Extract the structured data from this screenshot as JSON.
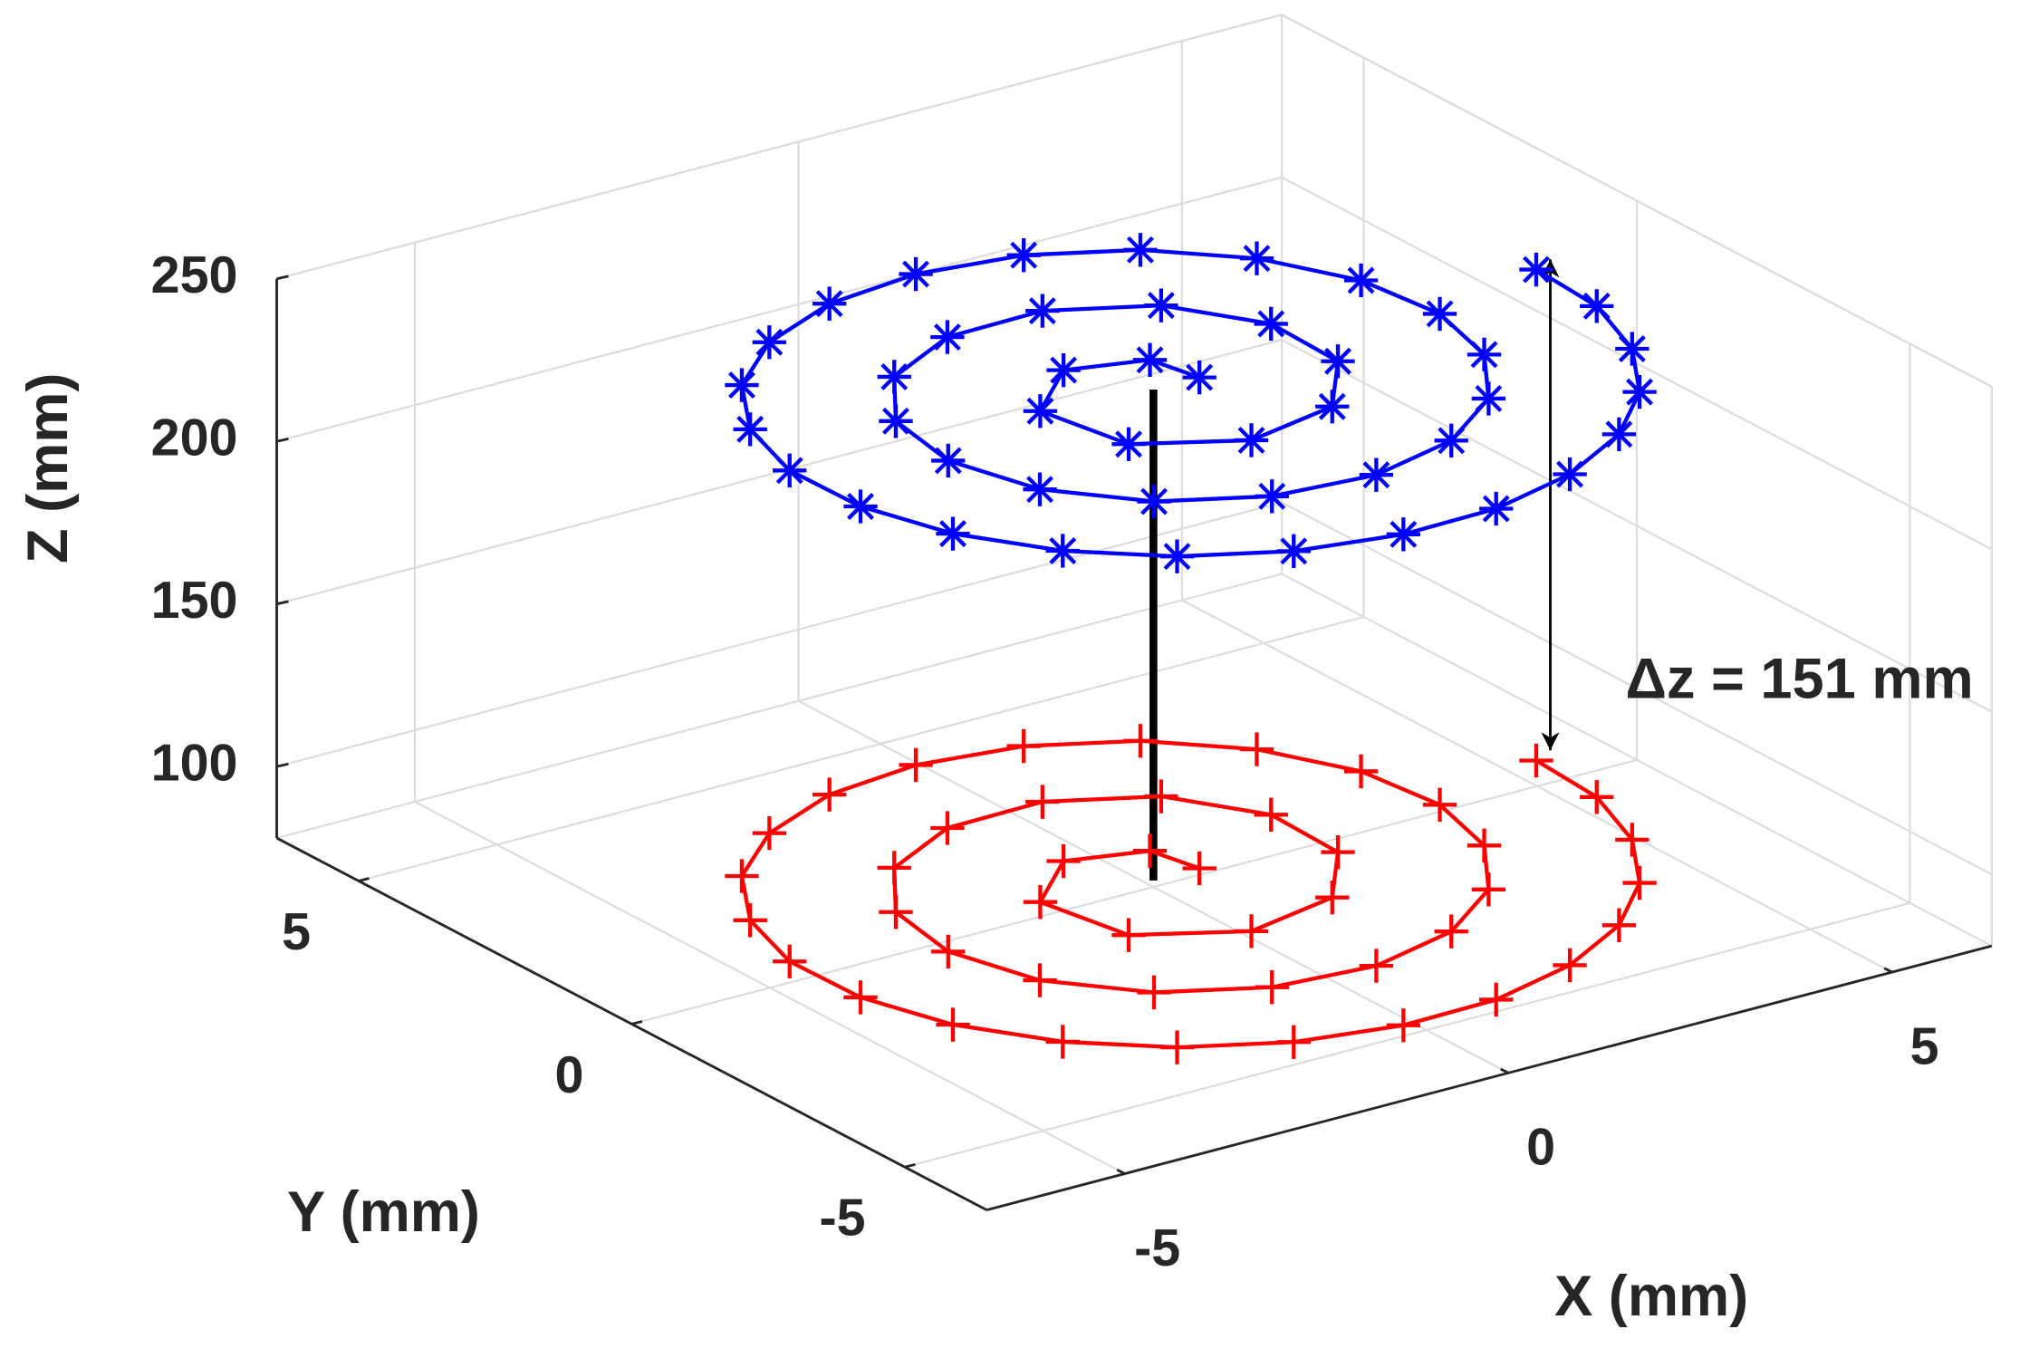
{
  "chart_data": {
    "type": "scatter3d",
    "xlabel": "X (mm)",
    "ylabel": "Y (mm)",
    "zlabel": "Z (mm)",
    "annotation": "Δz = 151 mm",
    "xlim": [
      -6.8,
      6.3
    ],
    "ylim": [
      -6.5,
      6.5
    ],
    "zlim": [
      78,
      250
    ],
    "xticks": [
      -5,
      0,
      5
    ],
    "yticks": [
      -5,
      0,
      5
    ],
    "zticks": [
      100,
      150,
      200,
      250
    ],
    "grid": true,
    "series": [
      {
        "color": "#ff0000",
        "marker": "+",
        "z": 80,
        "x": [
          0.6,
          0.46,
          -0.46,
          -1.34,
          -1.12,
          0.01,
          1.27,
          2.07,
          2.11,
          1.46,
          0.34,
          -0.92,
          -2.04,
          -2.76,
          -2.96,
          -2.64,
          -1.85,
          -0.74,
          0.52,
          1.74,
          2.76,
          3.45,
          3.74,
          3.61,
          3.07,
          2.2,
          1.1,
          -0.15,
          -1.39,
          -2.55,
          -3.5,
          -4.16,
          -4.5,
          -4.48,
          -4.13,
          -3.46,
          -2.56,
          -1.46,
          -0.23,
          1.0,
          2.21,
          3.3,
          4.18,
          4.83,
          5.23,
          5.31
        ],
        "y": [
          0.0,
          0.71,
          1.0,
          0.19,
          -1.12,
          -1.78,
          -1.49,
          -0.47,
          0.81,
          1.91,
          2.51,
          2.48,
          1.88,
          0.84,
          -0.4,
          -1.63,
          -2.61,
          -3.21,
          -3.35,
          -3.01,
          -2.26,
          -1.21,
          0.01,
          1.27,
          2.42,
          3.33,
          3.92,
          4.14,
          3.98,
          3.45,
          2.62,
          1.54,
          0.34,
          -0.93,
          -2.13,
          -3.2,
          -4.03,
          -4.62,
          -4.9,
          -4.87,
          -4.52,
          -3.89,
          -3.03,
          -1.98,
          -0.77,
          0.45
        ]
      },
      {
        "color": "#0000ff",
        "marker": "*",
        "z": 231,
        "x": [
          0.6,
          0.46,
          -0.46,
          -1.34,
          -1.12,
          0.01,
          1.27,
          2.07,
          2.11,
          1.46,
          0.34,
          -0.92,
          -2.04,
          -2.76,
          -2.96,
          -2.64,
          -1.85,
          -0.74,
          0.52,
          1.74,
          2.76,
          3.45,
          3.74,
          3.61,
          3.07,
          2.2,
          1.1,
          -0.15,
          -1.39,
          -2.55,
          -3.5,
          -4.16,
          -4.5,
          -4.48,
          -4.13,
          -3.46,
          -2.56,
          -1.46,
          -0.23,
          1.0,
          2.21,
          3.3,
          4.18,
          4.83,
          5.23,
          5.31
        ],
        "y": [
          0.0,
          0.71,
          1.0,
          0.19,
          -1.12,
          -1.78,
          -1.49,
          -0.47,
          0.81,
          1.91,
          2.51,
          2.48,
          1.88,
          0.84,
          -0.4,
          -1.63,
          -2.61,
          -3.21,
          -3.35,
          -3.01,
          -2.26,
          -1.21,
          0.01,
          1.27,
          2.42,
          3.33,
          3.92,
          4.14,
          3.98,
          3.45,
          2.62,
          1.54,
          0.34,
          -0.93,
          -2.13,
          -3.2,
          -4.03,
          -4.62,
          -4.9,
          -4.87,
          -4.52,
          -3.89,
          -3.03,
          -1.98,
          -0.77,
          0.45
        ]
      }
    ]
  }
}
